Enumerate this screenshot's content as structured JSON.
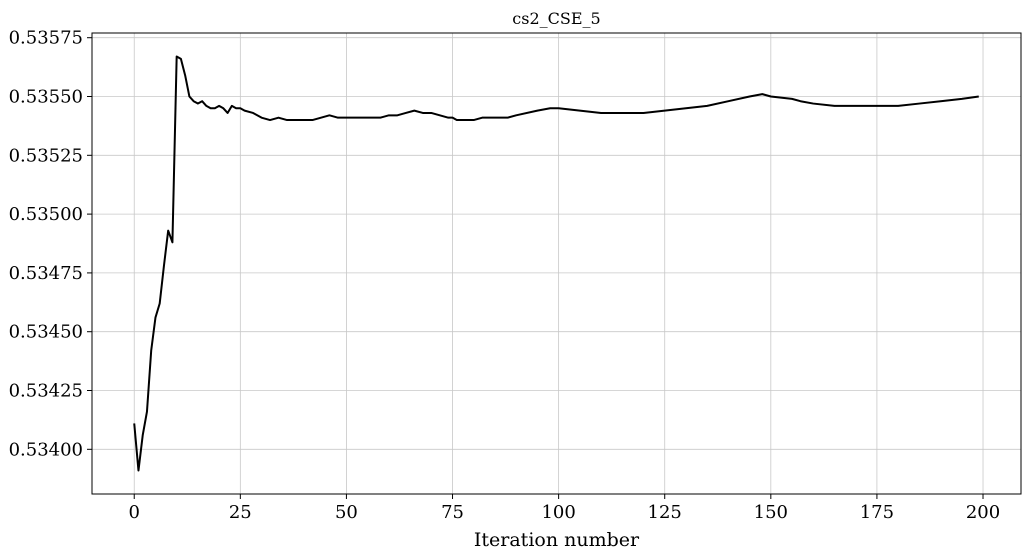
{
  "chart_data": {
    "type": "line",
    "title": "cs2_CSE_5",
    "xlabel": "Iteration number",
    "ylabel": "",
    "xlim": [
      -9.95,
      208.95
    ],
    "ylim": [
      0.53381,
      0.53577
    ],
    "grid": true,
    "x_ticks": [
      0,
      25,
      50,
      75,
      100,
      125,
      150,
      175,
      200
    ],
    "x_tick_labels": [
      "0",
      "25",
      "50",
      "75",
      "100",
      "125",
      "150",
      "175",
      "200"
    ],
    "y_ticks": [
      0.534,
      0.53425,
      0.5345,
      0.53475,
      0.535,
      0.53525,
      0.5355,
      0.53575
    ],
    "y_tick_labels": [
      "0.53400",
      "0.53425",
      "0.53450",
      "0.53475",
      "0.53500",
      "0.53525",
      "0.53550",
      "0.53575"
    ],
    "line_color": "#000000",
    "series": [
      {
        "x": [
          0,
          1,
          2,
          3,
          4,
          5,
          6,
          7,
          8,
          9,
          10,
          11,
          12,
          13,
          14,
          15,
          16,
          17,
          18,
          19,
          20,
          21,
          22,
          23,
          24,
          25,
          26,
          28,
          30,
          32,
          34,
          36,
          38,
          40,
          42,
          44,
          46,
          48,
          50,
          52,
          55,
          58,
          60,
          62,
          64,
          66,
          68,
          70,
          72,
          74,
          75,
          76,
          78,
          80,
          82,
          84,
          86,
          88,
          90,
          95,
          98,
          100,
          105,
          110,
          115,
          120,
          125,
          130,
          135,
          140,
          145,
          148,
          150,
          155,
          157,
          160,
          165,
          170,
          175,
          180,
          185,
          190,
          195,
          199
        ],
        "y": [
          0.53411,
          0.53391,
          0.53406,
          0.53416,
          0.53442,
          0.53456,
          0.53462,
          0.53478,
          0.53493,
          0.53488,
          0.53567,
          0.53566,
          0.53559,
          0.5355,
          0.53548,
          0.53547,
          0.53548,
          0.53546,
          0.53545,
          0.53545,
          0.53546,
          0.53545,
          0.53543,
          0.53546,
          0.53545,
          0.53545,
          0.53544,
          0.53543,
          0.53541,
          0.5354,
          0.53541,
          0.5354,
          0.5354,
          0.5354,
          0.5354,
          0.53541,
          0.53542,
          0.53541,
          0.53541,
          0.53541,
          0.53541,
          0.53541,
          0.53542,
          0.53542,
          0.53543,
          0.53544,
          0.53543,
          0.53543,
          0.53542,
          0.53541,
          0.53541,
          0.5354,
          0.5354,
          0.5354,
          0.53541,
          0.53541,
          0.53541,
          0.53541,
          0.53542,
          0.53544,
          0.53545,
          0.53545,
          0.53544,
          0.53543,
          0.53543,
          0.53543,
          0.53544,
          0.53545,
          0.53546,
          0.53548,
          0.5355,
          0.53551,
          0.5355,
          0.53549,
          0.53548,
          0.53547,
          0.53546,
          0.53546,
          0.53546,
          0.53546,
          0.53547,
          0.53548,
          0.53549,
          0.5355
        ]
      }
    ]
  }
}
